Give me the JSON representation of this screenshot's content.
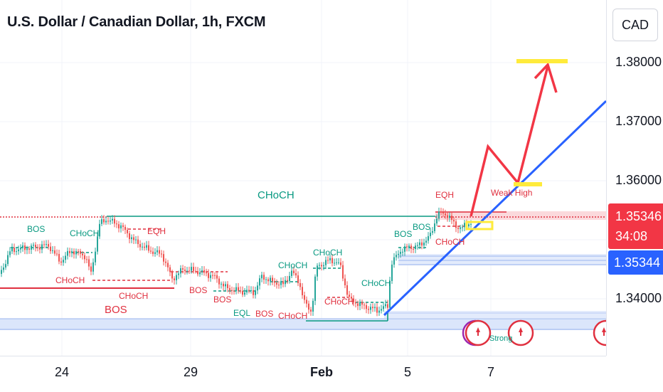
{
  "header": {
    "title": "U.S. Dollar / Canadian Dollar, 1h, FXCM"
  },
  "price_axis": {
    "currency_button": "CAD",
    "ticks": [
      "1.38000",
      "1.37000",
      "1.36000",
      "1.34000"
    ],
    "last_price": "1.35346",
    "countdown": "34:08",
    "other_price": "1.35344"
  },
  "time_axis": {
    "ticks": [
      "24",
      "29",
      "Feb",
      "5",
      "7"
    ]
  },
  "annotations": {
    "top_choch": "CHoCH",
    "eqh_right": "EQH",
    "weak_high": "Weak High",
    "bos_1": "BOS",
    "choch_1": "CHoCH",
    "eqh_left": "EQH",
    "choch_2": "CHoCH",
    "choch_3": "CHoCH",
    "bos_2": "BOS",
    "bos_3": "BOS",
    "bos_big": "BOS",
    "eql": "EQL",
    "bos_4": "BOS",
    "choch_4": "CHoCH",
    "choch_5": "CHoCH",
    "choch_6": "CHoCH",
    "choch_7": "CHoCH",
    "choch_8": "CHoCH",
    "bos_5": "BOS",
    "bos_6": "BOS",
    "choch_9": "CHoCH",
    "strong": "Strong"
  },
  "colors": {
    "bull": "#26a69a",
    "bear": "#ef5350",
    "annot_red": "#e0303f",
    "annot_green": "#089981",
    "trend_blue": "#2962ff",
    "projection_red": "#f23645",
    "target_yellow": "#ffeb3b",
    "zone_blue": "#dbe6fb"
  }
}
